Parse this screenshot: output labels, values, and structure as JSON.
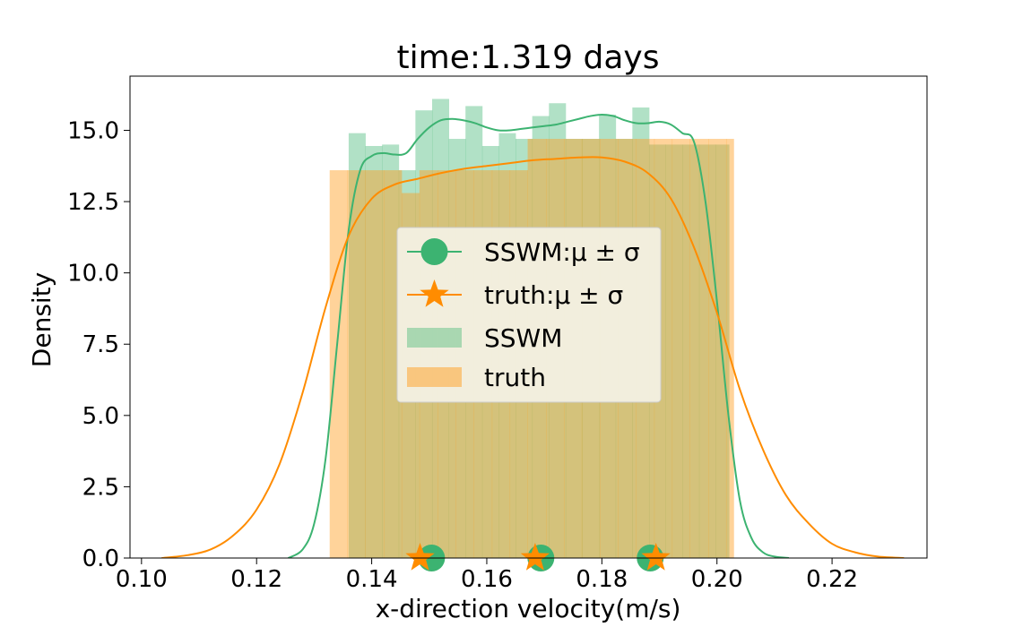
{
  "chart_data": {
    "type": "histogram+kde",
    "title": "time:1.319 days",
    "xlabel": "x-direction velocity(m/s)",
    "ylabel": "Density",
    "xlim": [
      0.098,
      0.2365
    ],
    "ylim": [
      0,
      16.9
    ],
    "xticks": [
      0.1,
      0.12,
      0.14,
      0.16,
      0.18,
      0.2,
      0.22
    ],
    "xtick_labels": [
      "0.10",
      "0.12",
      "0.14",
      "0.16",
      "0.18",
      "0.20",
      "0.22"
    ],
    "yticks": [
      0.0,
      2.5,
      5.0,
      7.5,
      10.0,
      12.5,
      15.0
    ],
    "ytick_labels": [
      "0.0",
      "2.5",
      "5.0",
      "7.5",
      "10.0",
      "12.5",
      "15.0"
    ],
    "colors": {
      "sswm": "#3cb371",
      "truth": "#ff8c00",
      "sswm_fill": "#3cb371",
      "truth_fill": "#ff9e1f"
    },
    "histograms": [
      {
        "name": "truth",
        "bin_edges": [
          0.1327,
          0.1358,
          0.1389,
          0.1421,
          0.1452,
          0.1483,
          0.1515,
          0.1546,
          0.1577,
          0.1609,
          0.164,
          0.1671,
          0.1703,
          0.1734,
          0.1765,
          0.1797,
          0.1828,
          0.1859,
          0.1891,
          0.1922,
          0.1953,
          0.1985,
          0.2016,
          0.2029
        ],
        "values": [
          13.6,
          13.6,
          13.6,
          13.6,
          12.8,
          13.6,
          13.6,
          13.6,
          13.6,
          13.6,
          13.6,
          14.7,
          14.7,
          14.7,
          14.7,
          14.7,
          14.7,
          14.7,
          14.7,
          14.7,
          14.7,
          14.7,
          14.7
        ]
      },
      {
        "name": "SSWM",
        "bin_edges": [
          0.136,
          0.1389,
          0.1418,
          0.1447,
          0.1476,
          0.1505,
          0.1534,
          0.1563,
          0.1592,
          0.1621,
          0.165,
          0.1679,
          0.1708,
          0.1737,
          0.1766,
          0.1795,
          0.1824,
          0.1853,
          0.1882,
          0.1911,
          0.194,
          0.1969,
          0.1998,
          0.2021
        ],
        "values": [
          14.9,
          14.45,
          14.5,
          13.6,
          15.7,
          16.1,
          14.7,
          15.85,
          14.45,
          14.9,
          14.7,
          15.5,
          15.95,
          14.7,
          14.7,
          15.55,
          14.7,
          15.8,
          14.5,
          14.5,
          14.5,
          14.5,
          14.5
        ]
      }
    ],
    "kde": [
      {
        "name": "SSWM",
        "x": [
          0.1255,
          0.128,
          0.13,
          0.132,
          0.134,
          0.136,
          0.138,
          0.14,
          0.142,
          0.144,
          0.146,
          0.148,
          0.15,
          0.152,
          0.154,
          0.156,
          0.158,
          0.16,
          0.162,
          0.164,
          0.166,
          0.168,
          0.17,
          0.172,
          0.174,
          0.176,
          0.178,
          0.18,
          0.182,
          0.184,
          0.186,
          0.188,
          0.19,
          0.192,
          0.194,
          0.196,
          0.198,
          0.2,
          0.202,
          0.204,
          0.206,
          0.208,
          0.21,
          0.2125
        ],
        "y": [
          0.0,
          0.3,
          1.2,
          3.5,
          7.5,
          11.5,
          13.6,
          14.1,
          14.2,
          14.15,
          14.2,
          14.7,
          15.1,
          15.35,
          15.4,
          15.35,
          15.25,
          15.1,
          15.0,
          15.0,
          15.05,
          15.1,
          15.15,
          15.2,
          15.3,
          15.4,
          15.5,
          15.55,
          15.5,
          15.35,
          15.25,
          15.25,
          15.3,
          15.2,
          14.9,
          14.6,
          12.5,
          9.0,
          5.0,
          2.0,
          0.7,
          0.2,
          0.05,
          0.0
        ]
      },
      {
        "name": "truth",
        "x": [
          0.1035,
          0.108,
          0.112,
          0.116,
          0.12,
          0.124,
          0.128,
          0.132,
          0.136,
          0.14,
          0.144,
          0.148,
          0.152,
          0.156,
          0.16,
          0.164,
          0.168,
          0.172,
          0.176,
          0.18,
          0.184,
          0.188,
          0.192,
          0.196,
          0.2,
          0.204,
          0.208,
          0.212,
          0.216,
          0.22,
          0.224,
          0.228,
          0.2325
        ],
        "y": [
          0.0,
          0.1,
          0.3,
          0.8,
          1.7,
          3.3,
          5.8,
          8.8,
          11.3,
          12.6,
          13.1,
          13.3,
          13.5,
          13.65,
          13.75,
          13.85,
          13.95,
          14.0,
          14.05,
          14.05,
          13.9,
          13.5,
          12.6,
          10.9,
          8.6,
          5.9,
          3.8,
          2.2,
          1.2,
          0.5,
          0.2,
          0.05,
          0.0
        ]
      }
    ],
    "markers": [
      {
        "name": "SSWM:μ ± σ",
        "shape": "circle",
        "x": [
          0.1504,
          0.1694,
          0.1884
        ],
        "y": 0
      },
      {
        "name": "truth:μ ± σ",
        "shape": "star",
        "x": [
          0.1484,
          0.1684,
          0.1894
        ],
        "y": 0
      }
    ],
    "legend": {
      "position": "center",
      "entries": [
        {
          "label": "SSWM:μ ± σ",
          "kind": "line-circle",
          "color": "#3cb371"
        },
        {
          "label": "truth:μ ± σ",
          "kind": "line-star",
          "color": "#ff8c00"
        },
        {
          "label": "SSWM",
          "kind": "patch",
          "color": "#3cb371"
        },
        {
          "label": "truth",
          "kind": "patch",
          "color": "#ff9e1f"
        }
      ]
    }
  }
}
